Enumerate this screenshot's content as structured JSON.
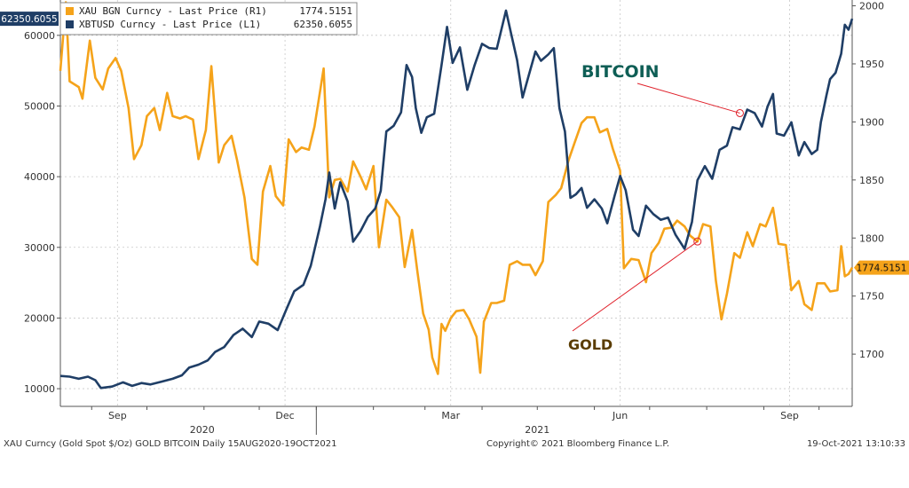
{
  "chart_data": {
    "type": "line",
    "legend": {
      "placement": "top-left",
      "entries": [
        {
          "label": "XAU BGN Curncy - Last Price (R1)",
          "value": "1774.5151"
        },
        {
          "label": "XBTUSD Curncy - Last Price (L1)",
          "value": "62350.6055"
        }
      ]
    },
    "colors": {
      "gold": "#f5a31a",
      "bitcoin": "#1f3e66",
      "annotation_line": "#e0202a",
      "btc_label": "#0e5e55",
      "gold_label": "#5a3c00"
    },
    "grid": true,
    "x_axis": {
      "start": "2020-08-15",
      "end": "2021-10-19",
      "month_ticks": [
        {
          "label": "Sep",
          "date": "2020-09-15"
        },
        {
          "label": "Dec",
          "date": "2020-12-15"
        },
        {
          "label": "Mar",
          "date": "2021-03-15"
        },
        {
          "label": "Jun",
          "date": "2021-06-15"
        },
        {
          "label": "Sep",
          "date": "2021-09-15"
        }
      ],
      "year_ticks": [
        {
          "label": "2020",
          "date": "2020-10-31"
        },
        {
          "label": "2021",
          "date": "2021-05-01"
        }
      ]
    },
    "y_left": {
      "series": "bitcoin",
      "ylim": [
        7500,
        65000
      ],
      "ticks": [
        "10000",
        "20000",
        "30000",
        "40000",
        "50000",
        "60000"
      ],
      "last_value_label": "62350.6055"
    },
    "y_right": {
      "series": "gold",
      "ylim": [
        1655,
        2005
      ],
      "ticks": [
        "1700",
        "1750",
        "1800",
        "1850",
        "1900",
        "1950",
        "2000"
      ],
      "last_value_label": "1774.5151"
    },
    "series": [
      {
        "key": "gold",
        "axis": "right",
        "points": [
          [
            "2020-08-15",
            1944
          ],
          [
            "2020-08-18",
            2003
          ],
          [
            "2020-08-20",
            1935
          ],
          [
            "2020-08-25",
            1930
          ],
          [
            "2020-08-27",
            1920
          ],
          [
            "2020-08-31",
            1970
          ],
          [
            "2020-09-03",
            1938
          ],
          [
            "2020-09-07",
            1928
          ],
          [
            "2020-09-10",
            1946
          ],
          [
            "2020-09-14",
            1955
          ],
          [
            "2020-09-17",
            1944
          ],
          [
            "2020-09-21",
            1912
          ],
          [
            "2020-09-24",
            1868
          ],
          [
            "2020-09-28",
            1880
          ],
          [
            "2020-10-01",
            1905
          ],
          [
            "2020-10-05",
            1912
          ],
          [
            "2020-10-08",
            1893
          ],
          [
            "2020-10-12",
            1925
          ],
          [
            "2020-10-15",
            1905
          ],
          [
            "2020-10-19",
            1903
          ],
          [
            "2020-10-22",
            1905
          ],
          [
            "2020-10-26",
            1902
          ],
          [
            "2020-10-29",
            1868
          ],
          [
            "2020-11-02",
            1893
          ],
          [
            "2020-11-05",
            1948
          ],
          [
            "2020-11-09",
            1865
          ],
          [
            "2020-11-12",
            1880
          ],
          [
            "2020-11-16",
            1888
          ],
          [
            "2020-11-19",
            1867
          ],
          [
            "2020-11-23",
            1835
          ],
          [
            "2020-11-27",
            1782
          ],
          [
            "2020-11-30",
            1777
          ],
          [
            "2020-12-03",
            1840
          ],
          [
            "2020-12-07",
            1862
          ],
          [
            "2020-12-10",
            1836
          ],
          [
            "2020-12-14",
            1828
          ],
          [
            "2020-12-17",
            1885
          ],
          [
            "2020-12-21",
            1874
          ],
          [
            "2020-12-24",
            1878
          ],
          [
            "2020-12-28",
            1876
          ],
          [
            "2020-12-31",
            1896
          ],
          [
            "2021-01-05",
            1946
          ],
          [
            "2021-01-08",
            1835
          ],
          [
            "2021-01-11",
            1850
          ],
          [
            "2021-01-14",
            1851
          ],
          [
            "2021-01-18",
            1840
          ],
          [
            "2021-01-21",
            1866
          ],
          [
            "2021-01-25",
            1853
          ],
          [
            "2021-01-28",
            1842
          ],
          [
            "2021-02-01",
            1862
          ],
          [
            "2021-02-04",
            1792
          ],
          [
            "2021-02-08",
            1833
          ],
          [
            "2021-02-11",
            1827
          ],
          [
            "2021-02-15",
            1818
          ],
          [
            "2021-02-18",
            1775
          ],
          [
            "2021-02-22",
            1807
          ],
          [
            "2021-02-25",
            1770
          ],
          [
            "2021-02-28",
            1735
          ],
          [
            "2021-03-03",
            1721
          ],
          [
            "2021-03-05",
            1697
          ],
          [
            "2021-03-08",
            1683
          ],
          [
            "2021-03-10",
            1726
          ],
          [
            "2021-03-12",
            1720
          ],
          [
            "2021-03-15",
            1731
          ],
          [
            "2021-03-18",
            1737
          ],
          [
            "2021-03-22",
            1738
          ],
          [
            "2021-03-25",
            1730
          ],
          [
            "2021-03-29",
            1715
          ],
          [
            "2021-03-31",
            1684
          ],
          [
            "2021-04-02",
            1728
          ],
          [
            "2021-04-06",
            1744
          ],
          [
            "2021-04-09",
            1744
          ],
          [
            "2021-04-13",
            1746
          ],
          [
            "2021-04-16",
            1777
          ],
          [
            "2021-04-20",
            1780
          ],
          [
            "2021-04-23",
            1777
          ],
          [
            "2021-04-27",
            1777
          ],
          [
            "2021-04-30",
            1768
          ],
          [
            "2021-05-04",
            1780
          ],
          [
            "2021-05-07",
            1831
          ],
          [
            "2021-05-11",
            1837
          ],
          [
            "2021-05-14",
            1843
          ],
          [
            "2021-05-18",
            1867
          ],
          [
            "2021-05-21",
            1881
          ],
          [
            "2021-05-25",
            1899
          ],
          [
            "2021-05-28",
            1904
          ],
          [
            "2021-06-01",
            1904
          ],
          [
            "2021-06-04",
            1891
          ],
          [
            "2021-06-08",
            1894
          ],
          [
            "2021-06-11",
            1877
          ],
          [
            "2021-06-15",
            1858
          ],
          [
            "2021-06-17",
            1774
          ],
          [
            "2021-06-21",
            1782
          ],
          [
            "2021-06-25",
            1781
          ],
          [
            "2021-06-29",
            1762
          ],
          [
            "2021-07-02",
            1787
          ],
          [
            "2021-07-06",
            1796
          ],
          [
            "2021-07-09",
            1808
          ],
          [
            "2021-07-13",
            1809
          ],
          [
            "2021-07-16",
            1815
          ],
          [
            "2021-07-20",
            1810
          ],
          [
            "2021-07-23",
            1802
          ],
          [
            "2021-07-27",
            1797
          ],
          [
            "2021-07-30",
            1812
          ],
          [
            "2021-08-03",
            1810
          ],
          [
            "2021-08-06",
            1763
          ],
          [
            "2021-08-09",
            1730
          ],
          [
            "2021-08-12",
            1752
          ],
          [
            "2021-08-16",
            1787
          ],
          [
            "2021-08-19",
            1783
          ],
          [
            "2021-08-23",
            1805
          ],
          [
            "2021-08-26",
            1793
          ],
          [
            "2021-08-30",
            1812
          ],
          [
            "2021-09-02",
            1810
          ],
          [
            "2021-09-06",
            1826
          ],
          [
            "2021-09-09",
            1795
          ],
          [
            "2021-09-13",
            1794
          ],
          [
            "2021-09-16",
            1755
          ],
          [
            "2021-09-20",
            1763
          ],
          [
            "2021-09-23",
            1743
          ],
          [
            "2021-09-27",
            1738
          ],
          [
            "2021-09-30",
            1761
          ],
          [
            "2021-10-04",
            1761
          ],
          [
            "2021-10-07",
            1754
          ],
          [
            "2021-10-11",
            1755
          ],
          [
            "2021-10-13",
            1793
          ],
          [
            "2021-10-15",
            1767
          ],
          [
            "2021-10-17",
            1769
          ],
          [
            "2021-10-19",
            1774.5151
          ]
        ]
      },
      {
        "key": "bitcoin",
        "axis": "left",
        "points": [
          [
            "2020-08-15",
            11800
          ],
          [
            "2020-08-20",
            11700
          ],
          [
            "2020-08-25",
            11400
          ],
          [
            "2020-08-30",
            11700
          ],
          [
            "2020-09-03",
            11200
          ],
          [
            "2020-09-06",
            10100
          ],
          [
            "2020-09-12",
            10300
          ],
          [
            "2020-09-18",
            10900
          ],
          [
            "2020-09-23",
            10400
          ],
          [
            "2020-09-28",
            10800
          ],
          [
            "2020-10-03",
            10600
          ],
          [
            "2020-10-09",
            11000
          ],
          [
            "2020-10-15",
            11400
          ],
          [
            "2020-10-20",
            11900
          ],
          [
            "2020-10-24",
            13000
          ],
          [
            "2020-10-29",
            13400
          ],
          [
            "2020-11-03",
            14000
          ],
          [
            "2020-11-07",
            15200
          ],
          [
            "2020-11-12",
            15900
          ],
          [
            "2020-11-17",
            17600
          ],
          [
            "2020-11-22",
            18500
          ],
          [
            "2020-11-27",
            17300
          ],
          [
            "2020-12-01",
            19500
          ],
          [
            "2020-12-06",
            19200
          ],
          [
            "2020-12-11",
            18300
          ],
          [
            "2020-12-16",
            21400
          ],
          [
            "2020-12-20",
            23800
          ],
          [
            "2020-12-25",
            24700
          ],
          [
            "2020-12-29",
            27400
          ],
          [
            "2021-01-03",
            33000
          ],
          [
            "2021-01-06",
            36800
          ],
          [
            "2021-01-08",
            40600
          ],
          [
            "2021-01-11",
            35500
          ],
          [
            "2021-01-14",
            39200
          ],
          [
            "2021-01-18",
            36500
          ],
          [
            "2021-01-21",
            30800
          ],
          [
            "2021-01-25",
            32300
          ],
          [
            "2021-01-29",
            34300
          ],
          [
            "2021-02-02",
            35500
          ],
          [
            "2021-02-05",
            38000
          ],
          [
            "2021-02-08",
            46400
          ],
          [
            "2021-02-12",
            47200
          ],
          [
            "2021-02-16",
            49100
          ],
          [
            "2021-02-19",
            55800
          ],
          [
            "2021-02-22",
            54100
          ],
          [
            "2021-02-24",
            49700
          ],
          [
            "2021-02-27",
            46200
          ],
          [
            "2021-03-02",
            48400
          ],
          [
            "2021-03-06",
            48900
          ],
          [
            "2021-03-10",
            55800
          ],
          [
            "2021-03-13",
            61200
          ],
          [
            "2021-03-16",
            56100
          ],
          [
            "2021-03-20",
            58300
          ],
          [
            "2021-03-24",
            52300
          ],
          [
            "2021-03-28",
            55800
          ],
          [
            "2021-04-01",
            58800
          ],
          [
            "2021-04-05",
            58200
          ],
          [
            "2021-04-09",
            58100
          ],
          [
            "2021-04-14",
            63500
          ],
          [
            "2021-04-17",
            60000
          ],
          [
            "2021-04-20",
            56500
          ],
          [
            "2021-04-23",
            51200
          ],
          [
            "2021-04-26",
            54000
          ],
          [
            "2021-04-30",
            57700
          ],
          [
            "2021-05-03",
            56400
          ],
          [
            "2021-05-07",
            57300
          ],
          [
            "2021-05-10",
            58200
          ],
          [
            "2021-05-13",
            49700
          ],
          [
            "2021-05-16",
            46400
          ],
          [
            "2021-05-19",
            37000
          ],
          [
            "2021-05-22",
            37500
          ],
          [
            "2021-05-25",
            38400
          ],
          [
            "2021-05-28",
            35600
          ],
          [
            "2021-06-01",
            36800
          ],
          [
            "2021-06-05",
            35500
          ],
          [
            "2021-06-08",
            33400
          ],
          [
            "2021-06-12",
            37300
          ],
          [
            "2021-06-15",
            40100
          ],
          [
            "2021-06-18",
            38100
          ],
          [
            "2021-06-22",
            32500
          ],
          [
            "2021-06-25",
            31600
          ],
          [
            "2021-06-29",
            35900
          ],
          [
            "2021-07-03",
            34700
          ],
          [
            "2021-07-07",
            33900
          ],
          [
            "2021-07-11",
            34200
          ],
          [
            "2021-07-15",
            31800
          ],
          [
            "2021-07-20",
            29800
          ],
          [
            "2021-07-24",
            33600
          ],
          [
            "2021-07-27",
            39500
          ],
          [
            "2021-07-31",
            41500
          ],
          [
            "2021-08-04",
            39700
          ],
          [
            "2021-08-08",
            43800
          ],
          [
            "2021-08-12",
            44400
          ],
          [
            "2021-08-15",
            47000
          ],
          [
            "2021-08-19",
            46700
          ],
          [
            "2021-08-23",
            49500
          ],
          [
            "2021-08-27",
            49000
          ],
          [
            "2021-08-31",
            47100
          ],
          [
            "2021-09-03",
            49900
          ],
          [
            "2021-09-06",
            51700
          ],
          [
            "2021-09-08",
            46100
          ],
          [
            "2021-09-12",
            45800
          ],
          [
            "2021-09-16",
            47700
          ],
          [
            "2021-09-20",
            43000
          ],
          [
            "2021-09-23",
            44900
          ],
          [
            "2021-09-27",
            43200
          ],
          [
            "2021-09-30",
            43800
          ],
          [
            "2021-10-02",
            47700
          ],
          [
            "2021-10-05",
            51500
          ],
          [
            "2021-10-07",
            53800
          ],
          [
            "2021-10-10",
            54700
          ],
          [
            "2021-10-13",
            57400
          ],
          [
            "2021-10-15",
            61500
          ],
          [
            "2021-10-17",
            60800
          ],
          [
            "2021-10-19",
            62350.6055
          ]
        ]
      }
    ],
    "annotations": [
      {
        "text": "BITCOIN",
        "series": "bitcoin",
        "date": "2021-08-19",
        "value": 49000
      },
      {
        "text": "GOLD",
        "series": "gold",
        "date": "2021-07-27",
        "value": 1797
      }
    ]
  },
  "footer": {
    "left": "XAU Curncy (Gold Spot  $/Oz) GOLD BITCOIN  Daily 15AUG2020-19OCT2021",
    "center": "Copyright© 2021 Bloomberg Finance L.P.",
    "right": "19-Oct-2021 13:10:33"
  }
}
